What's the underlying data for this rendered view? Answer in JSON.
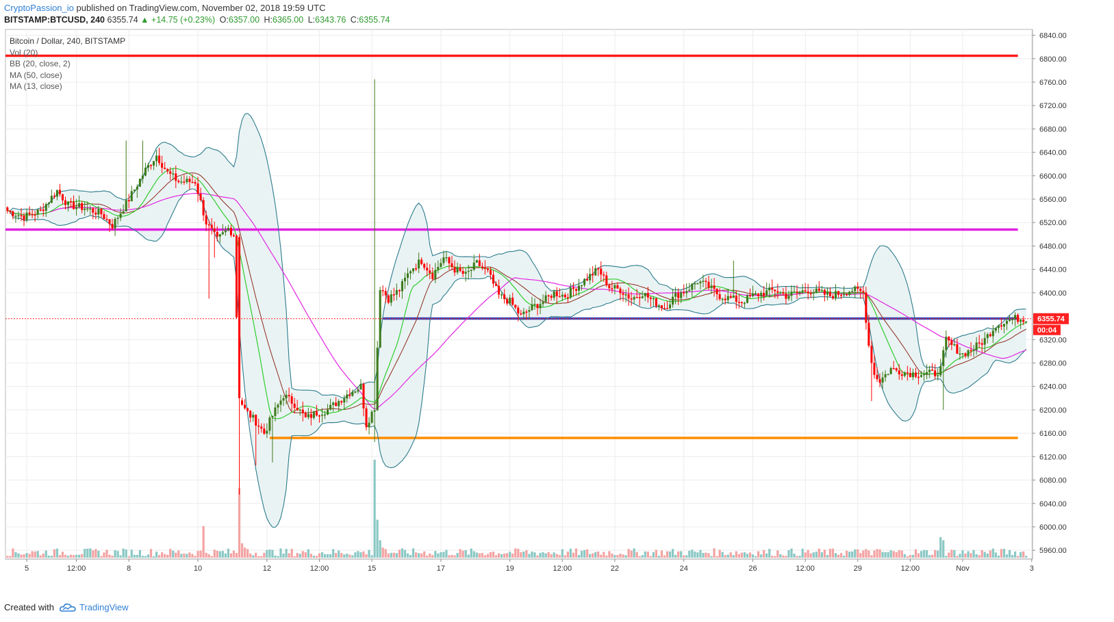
{
  "header": {
    "author": "CryptoPassion_io",
    "published": "published on TradingView.com, November 02, 2018 19:59 UTC",
    "symbol": "BITSTAMP:BTCUSD, 240",
    "price": "6355.74",
    "change": "+14.75 (+0.23%)",
    "o_label": "O:",
    "o": "6357.00",
    "h_label": "H:",
    "h": "6365.00",
    "l_label": "L:",
    "l": "6343.76",
    "c_label": "C:",
    "c": "6355.74"
  },
  "legend": {
    "title": "Bitcoin / Dollar, 240, BITSTAMP",
    "vol": "Vol (20)",
    "bb": "BB (20, close, 2)",
    "ma50": "MA (50, close)",
    "ma13": "MA (13, close)"
  },
  "footer": {
    "created": "Created with",
    "brand": "TradingView"
  },
  "colors": {
    "up": "#3c7a1a",
    "down": "#ff0000",
    "vol_up": "#8ac8c4",
    "vol_down": "#f4a3a3",
    "bb": "#2b7b8c",
    "bb_fill": "#eaf3f4",
    "ma50": "#e226e2",
    "ma13": "#2ecc2e",
    "ma20": "#8b2a1a",
    "hline_red": "#ff1a1a",
    "hline_magenta": "#e020e0",
    "hline_blue": "#3b45b5",
    "hline_orange": "#ff8c00",
    "price_tag": "#ff2222"
  },
  "chart_data": {
    "type": "candlestick",
    "title": "Bitcoin / Dollar, 240, BITSTAMP",
    "ylim": [
      5945,
      6850
    ],
    "y_ticks": [
      6840,
      6800,
      6760,
      6720,
      6680,
      6640,
      6600,
      6560,
      6520,
      6480,
      6440,
      6400,
      6320,
      6280,
      6240,
      6200,
      6160,
      6120,
      6080,
      6040,
      6000,
      5960
    ],
    "x_labels": [
      {
        "i": 7,
        "label": "5"
      },
      {
        "i": 25,
        "label": "12:00"
      },
      {
        "i": 44,
        "label": "8"
      },
      {
        "i": 69,
        "label": "10"
      },
      {
        "i": 94,
        "label": "12"
      },
      {
        "i": 113,
        "label": "12:00"
      },
      {
        "i": 132,
        "label": "15"
      },
      {
        "i": 157,
        "label": "17"
      },
      {
        "i": 182,
        "label": "19"
      },
      {
        "i": 201,
        "label": "12:00"
      },
      {
        "i": 220,
        "label": "22"
      },
      {
        "i": 245,
        "label": "24"
      },
      {
        "i": 270,
        "label": "26"
      },
      {
        "i": 289,
        "label": "12:00"
      },
      {
        "i": 308,
        "label": "29"
      },
      {
        "i": 327,
        "label": "12:00"
      },
      {
        "i": 346,
        "label": "Nov"
      },
      {
        "i": 371,
        "label": "3"
      }
    ],
    "last_price": 6355.74,
    "last_price_label": "6355.74",
    "countdown": "00:04",
    "horizontal_lines": [
      {
        "name": "resistance-red",
        "price": 6805,
        "from": 0,
        "to": 366
      },
      {
        "name": "resistance-magenta",
        "price": 6508,
        "from": 0,
        "to": 366
      },
      {
        "name": "support-blue",
        "price": 6356,
        "from": 136,
        "to": 366
      },
      {
        "name": "support-orange",
        "price": 6152,
        "from": 95,
        "to": 366
      }
    ],
    "anchors": [
      [
        0,
        6540
      ],
      [
        6,
        6530
      ],
      [
        12,
        6540
      ],
      [
        18,
        6575
      ],
      [
        22,
        6550
      ],
      [
        28,
        6545
      ],
      [
        34,
        6535
      ],
      [
        38,
        6515
      ],
      [
        44,
        6560
      ],
      [
        50,
        6610
      ],
      [
        54,
        6635
      ],
      [
        58,
        6605
      ],
      [
        62,
        6590
      ],
      [
        68,
        6590
      ],
      [
        72,
        6520
      ],
      [
        76,
        6490
      ],
      [
        80,
        6510
      ],
      [
        82,
        6500
      ],
      [
        84,
        6220
      ],
      [
        86,
        6200
      ],
      [
        90,
        6180
      ],
      [
        93,
        6160
      ],
      [
        96,
        6190
      ],
      [
        100,
        6225
      ],
      [
        104,
        6210
      ],
      [
        108,
        6185
      ],
      [
        112,
        6195
      ],
      [
        116,
        6200
      ],
      [
        120,
        6215
      ],
      [
        124,
        6230
      ],
      [
        128,
        6240
      ],
      [
        130,
        6175
      ],
      [
        133,
        6205
      ],
      [
        135,
        6410
      ],
      [
        138,
        6390
      ],
      [
        142,
        6405
      ],
      [
        146,
        6440
      ],
      [
        150,
        6455
      ],
      [
        154,
        6430
      ],
      [
        158,
        6460
      ],
      [
        162,
        6440
      ],
      [
        166,
        6430
      ],
      [
        170,
        6450
      ],
      [
        174,
        6435
      ],
      [
        178,
        6395
      ],
      [
        182,
        6385
      ],
      [
        186,
        6360
      ],
      [
        190,
        6375
      ],
      [
        194,
        6385
      ],
      [
        198,
        6400
      ],
      [
        202,
        6395
      ],
      [
        206,
        6410
      ],
      [
        210,
        6425
      ],
      [
        214,
        6440
      ],
      [
        218,
        6410
      ],
      [
        222,
        6405
      ],
      [
        226,
        6390
      ],
      [
        230,
        6400
      ],
      [
        234,
        6385
      ],
      [
        238,
        6375
      ],
      [
        242,
        6395
      ],
      [
        246,
        6405
      ],
      [
        250,
        6420
      ],
      [
        254,
        6410
      ],
      [
        258,
        6395
      ],
      [
        262,
        6390
      ],
      [
        266,
        6385
      ],
      [
        270,
        6395
      ],
      [
        274,
        6400
      ],
      [
        278,
        6405
      ],
      [
        282,
        6395
      ],
      [
        286,
        6400
      ],
      [
        290,
        6405
      ],
      [
        294,
        6400
      ],
      [
        298,
        6395
      ],
      [
        302,
        6400
      ],
      [
        306,
        6405
      ],
      [
        310,
        6400
      ],
      [
        312,
        6310
      ],
      [
        314,
        6260
      ],
      [
        316,
        6250
      ],
      [
        320,
        6270
      ],
      [
        324,
        6265
      ],
      [
        328,
        6262
      ],
      [
        332,
        6262
      ],
      [
        336,
        6262
      ],
      [
        338,
        6270
      ],
      [
        340,
        6320
      ],
      [
        342,
        6310
      ],
      [
        346,
        6295
      ],
      [
        350,
        6305
      ],
      [
        354,
        6320
      ],
      [
        358,
        6345
      ],
      [
        362,
        6352
      ],
      [
        365,
        6356
      ]
    ],
    "overrides": {
      "73": {
        "l": 6390
      },
      "75": {
        "l": 6460
      },
      "84": {
        "o": 6495,
        "c": 6220,
        "h": 6500,
        "l": 6055
      },
      "90": {
        "l": 6105
      },
      "96": {
        "l": 6110
      },
      "133": {
        "h": 6765,
        "l": 6145
      },
      "135": {
        "l": 6340
      },
      "313": {
        "l": 6215
      },
      "339": {
        "l": 6200
      },
      "43": {
        "h": 6660
      },
      "49": {
        "h": 6660
      },
      "263": {
        "h": 6455
      }
    },
    "volume_scale": 20,
    "volume_spikes": {
      "71": 20,
      "84": 44,
      "85": 10,
      "86": 7,
      "87": 6,
      "133": 62,
      "134": 24,
      "135": 11,
      "136": 7,
      "137": 6,
      "310": 5,
      "311": 6,
      "312": 5,
      "337": 5,
      "338": 13,
      "339": 11
    }
  }
}
